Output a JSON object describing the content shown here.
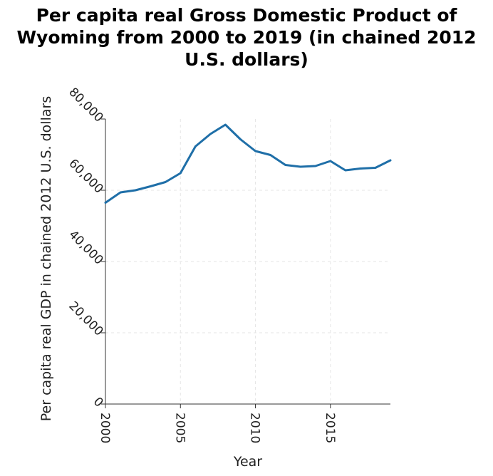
{
  "chart_data": {
    "type": "line",
    "title": "Per capita real Gross Domestic Product of Wyoming from 2000 to 2019 (in chained 2012 U.S. dollars)",
    "xlabel": "Year",
    "ylabel": "Per capita real GDP in chained 2012 U.S. dollars",
    "xlim": [
      2000,
      2019
    ],
    "ylim": [
      0,
      80000
    ],
    "x_ticks": [
      2000,
      2005,
      2010,
      2015
    ],
    "x_tick_labels": [
      "2000",
      "2005",
      "2010",
      "2015"
    ],
    "y_ticks": [
      0,
      20000,
      40000,
      60000,
      80000
    ],
    "y_tick_labels": [
      "0",
      "20,000",
      "40,000",
      "60,000",
      "80,000"
    ],
    "grid": true,
    "colors": {
      "series": "#1f6fa8",
      "grid": "#e6e6e6",
      "axis": "#333333"
    },
    "series": [
      {
        "x": [
          2000,
          2001,
          2002,
          2003,
          2004,
          2005,
          2006,
          2007,
          2008,
          2009,
          2010,
          2011,
          2012,
          2013,
          2014,
          2015,
          2016,
          2017,
          2018,
          2019
        ],
        "y": [
          56500,
          59400,
          60000,
          61100,
          62300,
          64800,
          72300,
          75800,
          78400,
          74300,
          71000,
          69900,
          67100,
          66600,
          66800,
          68200,
          65600,
          66100,
          66300,
          68400
        ]
      }
    ]
  }
}
